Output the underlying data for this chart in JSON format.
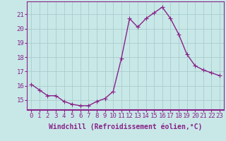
{
  "x": [
    0,
    1,
    2,
    3,
    4,
    5,
    6,
    7,
    8,
    9,
    10,
    11,
    12,
    13,
    14,
    15,
    16,
    17,
    18,
    19,
    20,
    21,
    22,
    23
  ],
  "y": [
    16.1,
    15.7,
    15.3,
    15.3,
    14.9,
    14.7,
    14.6,
    14.6,
    14.9,
    15.1,
    15.6,
    17.9,
    20.7,
    20.1,
    20.7,
    21.1,
    21.5,
    20.7,
    19.6,
    18.2,
    17.4,
    17.1,
    16.9,
    16.7
  ],
  "line_color": "#882288",
  "marker": "+",
  "markersize": 4,
  "linewidth": 1.0,
  "bg_color": "#c8e8e8",
  "grid_color": "#aacccc",
  "spine_color": "#882288",
  "xlabel": "Windchill (Refroidissement éolien,°C)",
  "xlabel_fontsize": 7,
  "tick_fontsize": 6.5,
  "xlim": [
    -0.5,
    23.5
  ],
  "ylim": [
    14.3,
    21.9
  ],
  "yticks": [
    15,
    16,
    17,
    18,
    19,
    20,
    21
  ],
  "xticks": [
    0,
    1,
    2,
    3,
    4,
    5,
    6,
    7,
    8,
    9,
    10,
    11,
    12,
    13,
    14,
    15,
    16,
    17,
    18,
    19,
    20,
    21,
    22,
    23
  ]
}
